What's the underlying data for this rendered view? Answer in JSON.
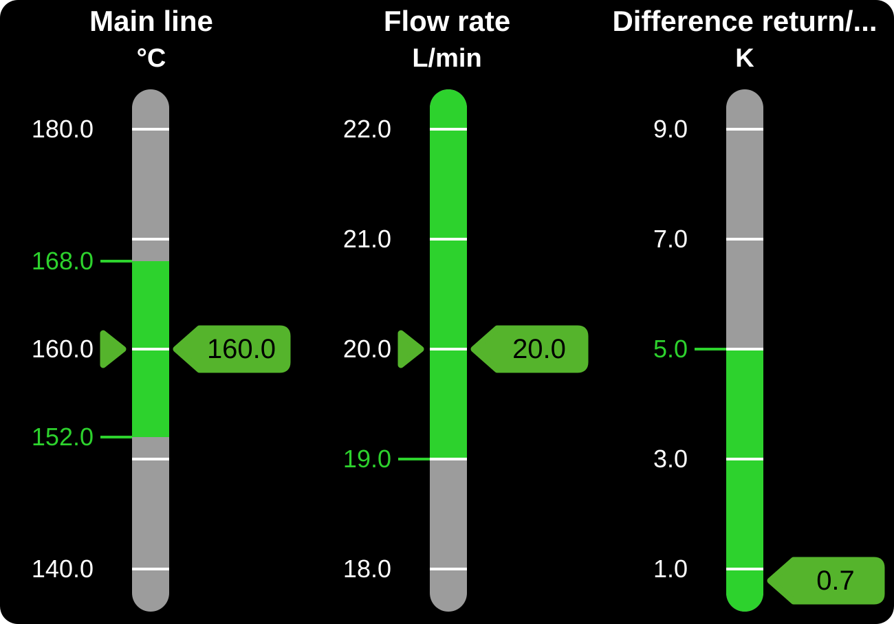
{
  "colors": {
    "background": "#000000",
    "track_gray": "#9c9c9c",
    "ok_green": "#2dd22d",
    "indicator_green": "#55b42c",
    "tick_white": "#ffffff",
    "label_white": "#ffffff",
    "tag_text": "#000000"
  },
  "chart_data": [
    {
      "type": "bar",
      "subtype": "vertical-gauge",
      "title": "Main line",
      "unit": "°C",
      "value": 160.0,
      "value_label": "160.0",
      "pointer": true,
      "scale": {
        "top_tick": 180,
        "bottom_tick": 140,
        "tick_step": 10
      },
      "ticks": [
        {
          "value": 180,
          "label": "180.0"
        },
        {
          "value": 170
        },
        {
          "value": 160,
          "label": "160.0"
        },
        {
          "value": 150
        },
        {
          "value": 140,
          "label": "140.0"
        }
      ],
      "ok_band": {
        "low": 152,
        "high": 168
      },
      "limits": [
        {
          "value": 168,
          "label": "168.0"
        },
        {
          "value": 152,
          "label": "152.0"
        }
      ]
    },
    {
      "type": "bar",
      "subtype": "vertical-gauge",
      "title": "Flow rate",
      "unit": "L/min",
      "value": 20.0,
      "value_label": "20.0",
      "pointer": true,
      "scale": {
        "top_tick": 22,
        "bottom_tick": 18,
        "tick_step": 1
      },
      "ticks": [
        {
          "value": 22,
          "label": "22.0"
        },
        {
          "value": 21,
          "label": "21.0"
        },
        {
          "value": 20,
          "label": "20.0"
        },
        {
          "value": 19
        },
        {
          "value": 18,
          "label": "18.0"
        }
      ],
      "ok_band": {
        "low": 19,
        "high": null
      },
      "limits": [
        {
          "value": 19,
          "label": "19.0"
        }
      ]
    },
    {
      "type": "bar",
      "subtype": "vertical-gauge",
      "title": "Difference return/...",
      "unit": "K",
      "value": 0.7,
      "value_label": "0.7",
      "pointer": false,
      "scale": {
        "top_tick": 9,
        "bottom_tick": 1,
        "tick_step": 2
      },
      "ticks": [
        {
          "value": 9,
          "label": "9.0"
        },
        {
          "value": 7,
          "label": "7.0"
        },
        {
          "value": 5
        },
        {
          "value": 3,
          "label": "3.0"
        },
        {
          "value": 1,
          "label": "1.0"
        }
      ],
      "ok_band": {
        "low": null,
        "high": 5
      },
      "limits": [
        {
          "value": 5,
          "label": "5.0"
        }
      ]
    }
  ]
}
